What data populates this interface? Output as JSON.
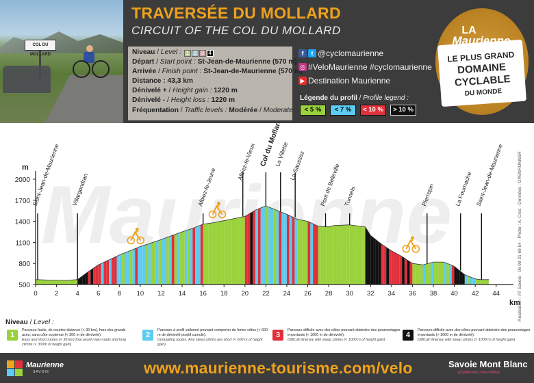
{
  "header": {
    "title_fr": "TRAVERSÉE DU MOLLARD",
    "title_en": "CIRCUIT OF THE COL DU MOLLARD",
    "photo_sign": "COL DU MOLLARD",
    "info": {
      "niveau_label": "Niveau",
      "niveau_label_en": "Level :",
      "level_boxes": [
        "1",
        "2",
        "3",
        "4"
      ],
      "depart_label": "Départ",
      "depart_label_en": "Start point :",
      "depart_value": "St-Jean-de-Maurienne (570 m)",
      "arrivee_label": "Arrivée",
      "arrivee_label_en": "Finish point :",
      "arrivee_value": "St-Jean-de-Maurienne (570 m)",
      "distance_label": "Distance :",
      "distance_value": "43,3 km",
      "gain_label": "Dénivelé +",
      "gain_label_en": "Height gain :",
      "gain_value": "1220 m",
      "loss_label": "Dénivelé -",
      "loss_label_en": "Height loss :",
      "loss_value": "1220 m",
      "freq_label": "Fréquentation",
      "freq_label_en": "Traffic levels :",
      "freq_value": "Modérée",
      "freq_value_en": "Moderate"
    },
    "social": {
      "row1": "@cyclomaurienne",
      "row2": "#VeloMaurienne #cyclomaurienne",
      "row3": "Destination Maurienne"
    },
    "legend": {
      "title": "Légende du profil",
      "title_en": "Profile legend :",
      "items": [
        {
          "label": "< 5 %",
          "color": "#9ad23c"
        },
        {
          "label": "< 7 %",
          "color": "#5ecbf0"
        },
        {
          "label": "< 10 %",
          "color": "#e0303a"
        },
        {
          "label": "> 10 %",
          "color": "#111111"
        }
      ]
    },
    "badge": {
      "la": "LA",
      "maurienne": "Maurienne",
      "line1": "LE PLUS GRAND",
      "line2": "DOMAINE",
      "line3": "CYCLABLE",
      "line4": "DU MONDE"
    }
  },
  "chart_data": {
    "type": "area",
    "title": "",
    "ylabel": "m",
    "xlabel": "km",
    "ylim": [
      500,
      2000
    ],
    "yticks": [
      500,
      800,
      1100,
      1400,
      1700,
      2000
    ],
    "xlim": [
      0,
      45
    ],
    "xticks": [
      0,
      2,
      4,
      6,
      8,
      10,
      12,
      14,
      16,
      18,
      20,
      22,
      24,
      26,
      28,
      30,
      32,
      34,
      36,
      38,
      40,
      42,
      44
    ],
    "profile": {
      "x": [
        0,
        2,
        3,
        4,
        5,
        6,
        8,
        10,
        12,
        14,
        15,
        16,
        17,
        18,
        19,
        20,
        21,
        22,
        23,
        24,
        25,
        26,
        27,
        28,
        28.5,
        30,
        31.5,
        32,
        33,
        34,
        35,
        36,
        37,
        38,
        39,
        40,
        41,
        42,
        42.5,
        43,
        43.3
      ],
      "y": [
        570,
        560,
        560,
        570,
        680,
        780,
        920,
        1040,
        1140,
        1250,
        1300,
        1360,
        1380,
        1410,
        1440,
        1470,
        1560,
        1620,
        1560,
        1500,
        1430,
        1400,
        1330,
        1320,
        1340,
        1350,
        1320,
        1200,
        1080,
        980,
        900,
        800,
        780,
        820,
        820,
        760,
        640,
        580,
        570,
        570,
        570
      ]
    },
    "places": [
      {
        "name": "Saint-Jean-de-Maurienne",
        "km": 0.2,
        "alt": 570
      },
      {
        "name": "Villargondran",
        "km": 4,
        "alt": 570
      },
      {
        "name": "Albiez-le-Jeune",
        "km": 16,
        "alt": 1360
      },
      {
        "name": "Albiez-le-Vieux",
        "km": 19.8,
        "alt": 1470
      },
      {
        "name": "Col du Mollard",
        "km": 22,
        "alt": 1620
      },
      {
        "name": "La Villette",
        "km": 23.4,
        "alt": 1540
      },
      {
        "name": "La Saussaz",
        "km": 24.8,
        "alt": 1460
      },
      {
        "name": "Pont de Belleville",
        "km": 27.7,
        "alt": 1320
      },
      {
        "name": "Tunnels",
        "km": 30,
        "alt": 1350
      },
      {
        "name": "Pierrepin",
        "km": 37.4,
        "alt": 800
      },
      {
        "name": "La Fournache",
        "km": 40.6,
        "alt": 700
      },
      {
        "name": "Saint-Jean-de-Maurienne",
        "km": 42.6,
        "alt": 570
      }
    ],
    "segments_legend": [
      "< 5 %",
      "< 7 %",
      "< 10 %",
      "> 10 %"
    ]
  },
  "side_credit": "Réalisation : AT Savoie - 06 99 21 69 54 - Photo : A. Cros - Données : OPENRUNNER",
  "levels": {
    "title": "Niveau",
    "title_en": "Level :",
    "items": [
      {
        "num": "1",
        "color": "#9ad23c",
        "fr": "Parcours facile, de courtes distance (< 30 km), hors des grands axes, sans côte soutenue (< 300 m de dénivelé).",
        "en": "Easy and short routes (< 30 km) that avoid main roads and long climbs (< 300m of height gain)"
      },
      {
        "num": "2",
        "color": "#5ecbf0",
        "fr": "Parcours à profil vallonné pouvant comporter de fortes côtes (< 600 m de dénivelé positif cumulé).",
        "en": "Undulating routes. Any steep climbs are short (< 600 m of height gain)"
      },
      {
        "num": "3",
        "color": "#e0303a",
        "fr": "Parcours difficile avec des côtes pouvant atteindre des pourcentages importants (< 1000 m de dénivelé).",
        "en": "Difficult itinerary with steep climbs (< 1000 m of height gain)"
      },
      {
        "num": "4",
        "color": "#111111",
        "fr": "Parcours difficile avec des côtes pouvant atteindre des pourcentages importants (> 1000 m de dénivelé).",
        "en": "Difficult itinerary with steep climbs (> 1000 m of height gain)"
      }
    ]
  },
  "footer": {
    "url": "www.maurienne-tourisme.com/velo",
    "maurienne_logo": "Maurienne",
    "maurienne_sub": "SAVOIE",
    "savoie1": "Savoie Mont Blanc",
    "savoie_sub": "simplement merveilleux"
  }
}
